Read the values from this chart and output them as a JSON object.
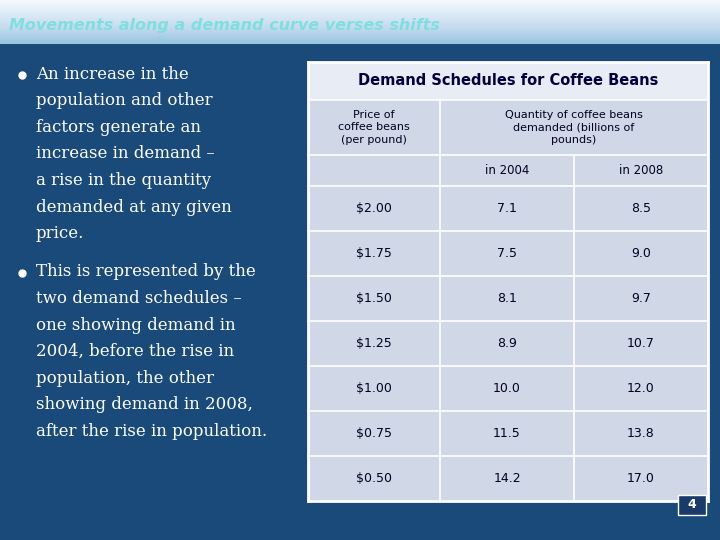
{
  "title": "Movements along a demand curve verses shifts",
  "title_color": "#7FDFDF",
  "title_bg_top": "#0a0a14",
  "title_bg_bottom": "#1a3a6a",
  "slide_bg": "#1a4a7a",
  "bullet1_lines": [
    "An increase in the",
    "population and other",
    "factors generate an",
    "increase in demand –",
    "a rise in the quantity",
    "demanded at any given",
    "price."
  ],
  "bullet2_lines": [
    "This is represented by the",
    "two demand schedules –",
    "one showing demand in",
    "2004, before the rise in",
    "population, the other",
    "showing demand in 2008,",
    "after the rise in population."
  ],
  "table_title": "Demand Schedules for Coffee Beans",
  "col_header1": "Price of\ncoffee beans\n(per pound)",
  "col_header2": "Quantity of coffee beans\ndemanded (billions of\npounds)",
  "sub_header1": "in 2004",
  "sub_header2": "in 2008",
  "prices": [
    "$2.00",
    "$1.75",
    "$1.50",
    "$1.25",
    "$1.00",
    "$0.75",
    "$0.50"
  ],
  "qty_2004": [
    "7.1",
    "7.5",
    "8.1",
    "8.9",
    "10.0",
    "11.5",
    "14.2"
  ],
  "qty_2008": [
    "8.5",
    "9.0",
    "9.7",
    "10.7",
    "12.0",
    "13.8",
    "17.0"
  ],
  "table_cell_bg": "#d0d8e8",
  "table_title_bg": "#e8ecf4",
  "table_border": "#FFFFFF",
  "table_inner_border": "#AAAACC",
  "table_text": "#000020",
  "table_title_text": "#000040",
  "bullet_text_color": "#FFFFFF",
  "slide_bg_bottom": "#1a2a4a",
  "slide_number": "4",
  "slide_num_bg": "#1a3a6a"
}
